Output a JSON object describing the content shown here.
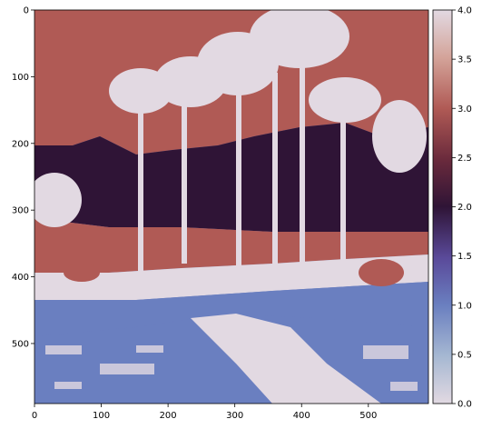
{
  "chart_data": {
    "type": "heatmap",
    "title": "",
    "xlabel": "",
    "ylabel": "",
    "xlim": [
      0,
      590
    ],
    "ylim": [
      590,
      0
    ],
    "x_ticks": [
      "0",
      "100",
      "200",
      "300",
      "400",
      "500"
    ],
    "y_ticks": [
      "0",
      "100",
      "200",
      "300",
      "400",
      "500"
    ],
    "x_tick_values": [
      0,
      100,
      200,
      300,
      400,
      500
    ],
    "y_tick_values": [
      0,
      100,
      200,
      300,
      400,
      500
    ],
    "colorbar": {
      "range": [
        0.0,
        4.0
      ],
      "ticks": [
        "0.0",
        "0.5",
        "1.0",
        "1.5",
        "2.0",
        "2.5",
        "3.0",
        "3.5",
        "4.0"
      ],
      "tick_values": [
        0.0,
        0.5,
        1.0,
        1.5,
        2.0,
        2.5,
        3.0,
        3.5,
        4.0
      ],
      "colormap": "twilight"
    },
    "levels": [
      {
        "value": 0.0,
        "color": "#e2d9e2"
      },
      {
        "value": 1.0,
        "color": "#6a7fc0"
      },
      {
        "value": 2.0,
        "color": "#2f1436"
      },
      {
        "value": 3.0,
        "color": "#b05a55"
      },
      {
        "value": 4.0,
        "color": "#e2d9e2"
      }
    ]
  }
}
